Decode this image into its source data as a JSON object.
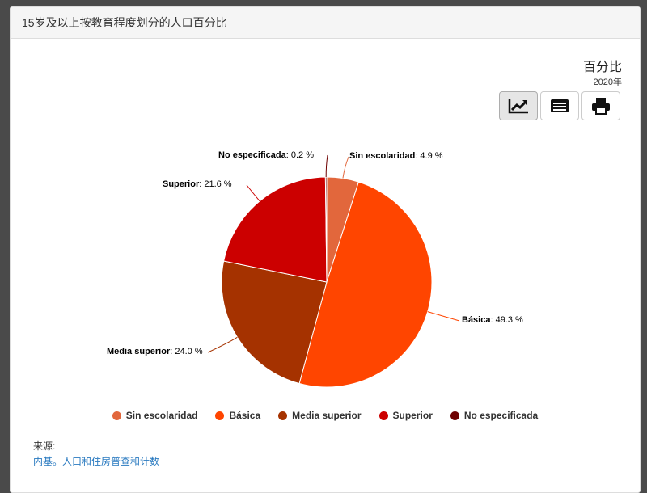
{
  "header": {
    "title": "15岁及以上按教育程度划分的人口百分比"
  },
  "unit": "百分比",
  "year": "2020年",
  "toolbar": {
    "chart_icon": "line-chart-icon",
    "table_icon": "table-icon",
    "print_icon": "printer-icon"
  },
  "chart_data": {
    "type": "pie",
    "categories": [
      "Sin escolaridad",
      "Básica",
      "Media superior",
      "Superior",
      "No especificada"
    ],
    "values": [
      4.9,
      49.3,
      24.0,
      21.6,
      0.2
    ],
    "value_labels": [
      ": 4.9 %",
      ": 49.3 %",
      ": 24.0 %",
      ": 21.6 %",
      ": 0.2 %"
    ],
    "colors": [
      "#e2673c",
      "#ff4500",
      "#a53200",
      "#cc0000",
      "#6e0000"
    ],
    "legend": "bottom"
  },
  "source": {
    "label": "来源:",
    "link": "内基。人口和住房普查和计数"
  }
}
